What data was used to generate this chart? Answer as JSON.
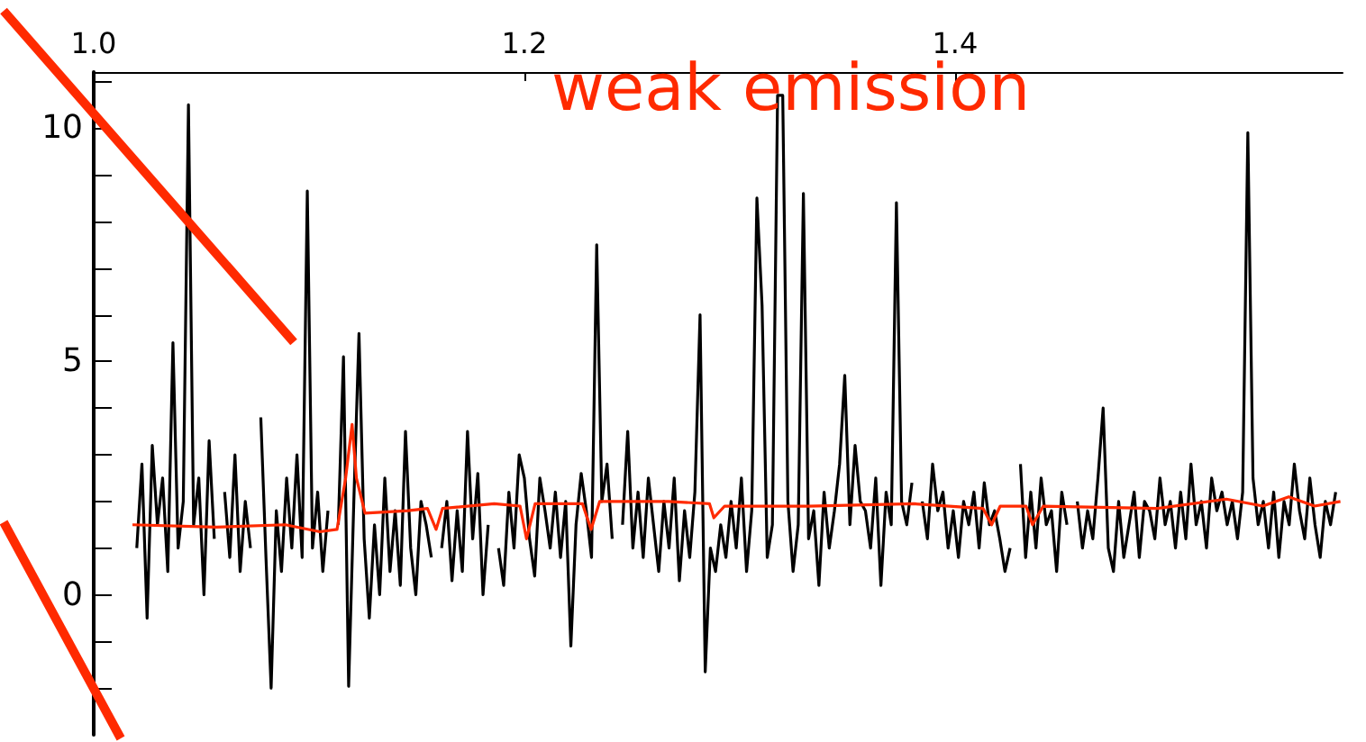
{
  "chart_data": {
    "type": "line",
    "annotations": [
      "weak emission"
    ],
    "xlim": [
      1.0,
      1.58
    ],
    "xticks": [
      {
        "value": 1.0,
        "label": "1.0"
      },
      {
        "value": 1.2,
        "label": "1.2"
      },
      {
        "value": 1.4,
        "label": "1.4"
      }
    ],
    "ylim": [
      -3,
      11.2
    ],
    "yticks": [
      {
        "value": -2,
        "label": null
      },
      {
        "value": -1,
        "label": null
      },
      0,
      {
        "value": 1,
        "label": null
      },
      {
        "value": 2,
        "label": null
      },
      {
        "value": 3,
        "label": null
      },
      {
        "value": 4,
        "label": null
      },
      5,
      {
        "value": 6,
        "label": null
      },
      {
        "value": 7,
        "label": null
      },
      {
        "value": 8,
        "label": null
      },
      {
        "value": 9,
        "label": null
      },
      10,
      {
        "value": 11,
        "label": null
      }
    ],
    "grid": false,
    "marker": "none",
    "line_style": "solid",
    "series": [
      {
        "color": "#000000",
        "x": [
          1.02,
          1.0224,
          1.0248,
          1.0272,
          1.0296,
          1.032,
          1.0344,
          1.0368,
          1.0392,
          1.0416,
          1.044,
          1.0464,
          1.0488,
          1.0512,
          1.0536,
          1.056,
          1.0584,
          1.0608,
          1.0632,
          1.0656,
          1.068,
          1.0704,
          1.0728,
          1.0752,
          1.0776,
          1.08,
          1.0824,
          1.0848,
          1.0872,
          1.0896,
          1.092,
          1.0944,
          1.0968,
          1.0992,
          1.1016,
          1.104,
          1.1064,
          1.1088,
          1.1112,
          1.1136,
          1.116,
          1.1184,
          1.1208,
          1.1232,
          1.1256,
          1.128,
          1.1304,
          1.1328,
          1.1352,
          1.1376,
          1.14,
          1.1424,
          1.1448,
          1.1472,
          1.1496,
          1.152,
          1.1544,
          1.1568,
          1.1592,
          1.1616,
          1.164,
          1.1664,
          1.1688,
          1.1712,
          1.1736,
          1.176,
          1.1784,
          1.1808,
          1.1832,
          1.1856,
          1.188,
          1.1904,
          1.1928,
          1.1952,
          1.1976,
          1.2,
          1.2024,
          1.2048,
          1.2072,
          1.2096,
          1.212,
          1.2144,
          1.2168,
          1.2192,
          1.2216,
          1.224,
          1.2264,
          1.2288,
          1.2312,
          1.2336,
          1.236,
          1.2384,
          1.2408,
          1.2432,
          1.2456,
          1.248,
          1.2504,
          1.2528,
          1.2552,
          1.2576,
          1.26,
          1.2624,
          1.2648,
          1.2672,
          1.2696,
          1.272,
          1.2744,
          1.2768,
          1.2792,
          1.2816,
          1.284,
          1.2864,
          1.2888,
          1.2912,
          1.2936,
          1.296,
          1.2984,
          1.3008,
          1.3032,
          1.3056,
          1.308,
          1.3104,
          1.3128,
          1.3152,
          1.3176,
          1.32,
          1.3224,
          1.3248,
          1.3272,
          1.3296,
          1.332,
          1.3344,
          1.3368,
          1.3392,
          1.3416,
          1.344,
          1.3464,
          1.3488,
          1.3512,
          1.3536,
          1.356,
          1.3584,
          1.3608,
          1.3632,
          1.3656,
          1.368,
          1.3704,
          1.3728,
          1.3752,
          1.3776,
          1.38,
          1.3824,
          1.3848,
          1.3872,
          1.3896,
          1.392,
          1.3944,
          1.3968,
          1.3992,
          1.4016,
          1.404,
          1.4064,
          1.4088,
          1.4112,
          1.4136,
          1.416,
          1.4184,
          1.4208,
          1.4232,
          1.4256,
          1.428,
          1.4304,
          1.4328,
          1.4352,
          1.4376,
          1.44,
          1.4424,
          1.4448,
          1.4472,
          1.4496,
          1.452,
          1.4544,
          1.4568,
          1.4592,
          1.4616,
          1.464,
          1.4664,
          1.4688,
          1.4712,
          1.4736,
          1.476,
          1.4784,
          1.4808,
          1.4832,
          1.4856,
          1.488,
          1.4904,
          1.4928,
          1.4952,
          1.4976,
          1.5,
          1.5024,
          1.5048,
          1.5072,
          1.5096,
          1.512,
          1.5144,
          1.5168,
          1.5192,
          1.5216,
          1.524,
          1.5264,
          1.5288,
          1.5312,
          1.5336,
          1.536,
          1.5384,
          1.5408,
          1.5432,
          1.5456,
          1.548,
          1.5504,
          1.5528,
          1.5552,
          1.5576,
          1.56,
          1.5624,
          1.5648,
          1.5672,
          1.5696,
          1.572,
          1.5744,
          1.5768
        ],
        "values": [
          1.0,
          2.8,
          -0.5,
          3.2,
          1.5,
          2.5,
          0.5,
          5.4,
          1.0,
          2.0,
          10.5,
          1.5,
          2.5,
          0.0,
          3.3,
          1.2,
          null,
          2.2,
          0.8,
          3.0,
          0.5,
          2.0,
          1.0,
          null,
          3.8,
          0.8,
          -2.0,
          1.8,
          0.5,
          2.5,
          1.0,
          3.0,
          0.8,
          8.65,
          1.0,
          2.2,
          0.5,
          1.8,
          null,
          1.5,
          5.1,
          -1.96,
          2.0,
          5.6,
          1.2,
          -0.5,
          1.5,
          0.0,
          2.5,
          0.5,
          1.8,
          0.2,
          3.5,
          1.0,
          0.0,
          2.0,
          1.5,
          0.8,
          null,
          1.0,
          2.0,
          0.3,
          1.8,
          0.5,
          3.5,
          1.2,
          2.6,
          0.0,
          1.5,
          null,
          1.0,
          0.2,
          2.2,
          1.0,
          3.0,
          2.5,
          1.2,
          0.4,
          2.5,
          1.8,
          1.0,
          2.2,
          0.8,
          2.0,
          -1.1,
          1.5,
          2.6,
          1.8,
          0.8,
          7.5,
          2.0,
          2.8,
          1.2,
          null,
          1.5,
          3.5,
          1.0,
          2.2,
          0.8,
          2.5,
          1.5,
          0.5,
          2.0,
          1.0,
          2.5,
          0.3,
          1.8,
          0.8,
          2.2,
          6.0,
          -1.65,
          1.0,
          0.5,
          1.5,
          0.8,
          2.0,
          1.0,
          2.5,
          0.5,
          1.8,
          8.5,
          6.2,
          0.8,
          1.5,
          10.7,
          10.7,
          2.0,
          0.5,
          1.5,
          8.6,
          1.2,
          1.8,
          0.2,
          2.2,
          1.0,
          1.8,
          2.8,
          4.7,
          1.5,
          3.2,
          2.0,
          1.8,
          1.0,
          2.5,
          0.2,
          2.2,
          1.5,
          8.4,
          2.0,
          1.5,
          2.4,
          null,
          2.0,
          1.2,
          2.8,
          1.8,
          2.2,
          1.0,
          1.8,
          0.8,
          2.0,
          1.5,
          2.2,
          1.0,
          2.4,
          1.5,
          1.8,
          1.2,
          0.5,
          1.0,
          null,
          2.8,
          0.8,
          2.2,
          1.0,
          2.5,
          1.5,
          1.8,
          0.5,
          2.2,
          1.5,
          null,
          2.0,
          1.0,
          1.8,
          1.2,
          2.5,
          4.0,
          1.0,
          0.5,
          2.0,
          0.8,
          1.5,
          2.2,
          0.8,
          2.0,
          1.8,
          1.2,
          2.5,
          1.5,
          2.0,
          1.0,
          2.2,
          1.2,
          2.8,
          1.5,
          2.0,
          1.0,
          2.5,
          1.8,
          2.2,
          1.5,
          2.0,
          1.2,
          2.2,
          9.9,
          2.5,
          1.5,
          2.0,
          1.0,
          2.2,
          0.8,
          2.0,
          1.5,
          2.8,
          1.8,
          1.2,
          2.5,
          1.5,
          0.8,
          2.0,
          1.5,
          2.2
        ]
      },
      {
        "color": "#ff2a00",
        "x": [
          1.018,
          1.057,
          1.089,
          1.105,
          1.113,
          1.117,
          1.12,
          1.122,
          1.126,
          1.146,
          1.155,
          1.159,
          1.162,
          1.186,
          1.198,
          1.201,
          1.205,
          1.227,
          1.231,
          1.235,
          1.267,
          1.286,
          1.288,
          1.293,
          1.332,
          1.381,
          1.413,
          1.417,
          1.421,
          1.433,
          1.436,
          1.441,
          1.494,
          1.526,
          1.543,
          1.555,
          1.567,
          1.579
        ],
        "values": [
          1.5,
          1.45,
          1.5,
          1.35,
          1.4,
          2.5,
          3.65,
          2.5,
          1.75,
          1.8,
          1.85,
          1.4,
          1.85,
          1.95,
          1.9,
          1.2,
          1.95,
          1.95,
          1.4,
          2.0,
          2.0,
          1.95,
          1.65,
          1.9,
          1.9,
          1.95,
          1.85,
          1.5,
          1.9,
          1.9,
          1.5,
          1.9,
          1.85,
          2.05,
          1.9,
          2.1,
          1.9,
          2.0
        ]
      }
    ]
  }
}
